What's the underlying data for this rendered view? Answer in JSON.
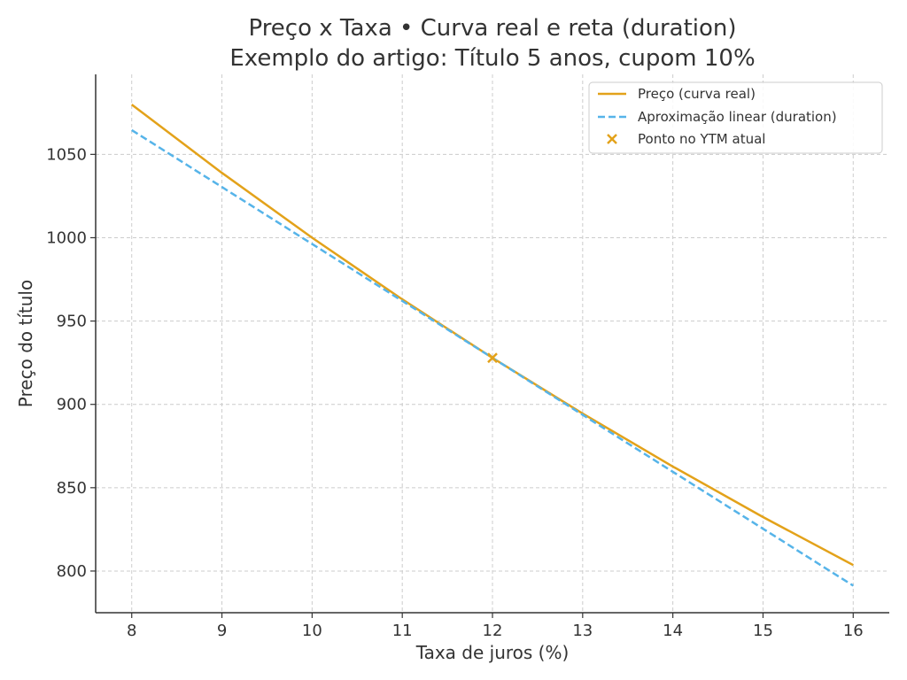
{
  "chart_data": {
    "type": "line",
    "title": "Preço x Taxa • Curva real e reta (duration)",
    "subtitle": "Exemplo do artigo: Título 5 anos, cupom 10%",
    "xlabel": "Taxa de juros (%)",
    "ylabel": "Preço do título",
    "xlim": [
      7.6,
      16.4
    ],
    "ylim": [
      775,
      1098
    ],
    "x_ticks": [
      8,
      9,
      10,
      11,
      12,
      13,
      14,
      15,
      16
    ],
    "y_ticks": [
      800,
      850,
      900,
      950,
      1000,
      1050
    ],
    "grid": true,
    "legend_position": "top-right",
    "colors": {
      "curve": "#E3A21A",
      "linear": "#56B4E9",
      "point": "#E3A21A",
      "text": "#333333",
      "grid": "#cccccc"
    },
    "series": [
      {
        "name": "Preço (curva real)",
        "style": "solid",
        "x": [
          8,
          9,
          10,
          11,
          12,
          13,
          14,
          15,
          16
        ],
        "y": [
          1079.9,
          1038.9,
          1000.0,
          963.0,
          927.9,
          894.5,
          862.7,
          832.4,
          803.6
        ]
      },
      {
        "name": "Aproximação linear (duration)",
        "style": "dashed",
        "x": [
          8,
          16
        ],
        "y": [
          1064.6,
          791.2
        ]
      }
    ],
    "points": [
      {
        "name": "Ponto no YTM atual",
        "marker": "x",
        "x": 12,
        "y": 927.9
      }
    ]
  }
}
